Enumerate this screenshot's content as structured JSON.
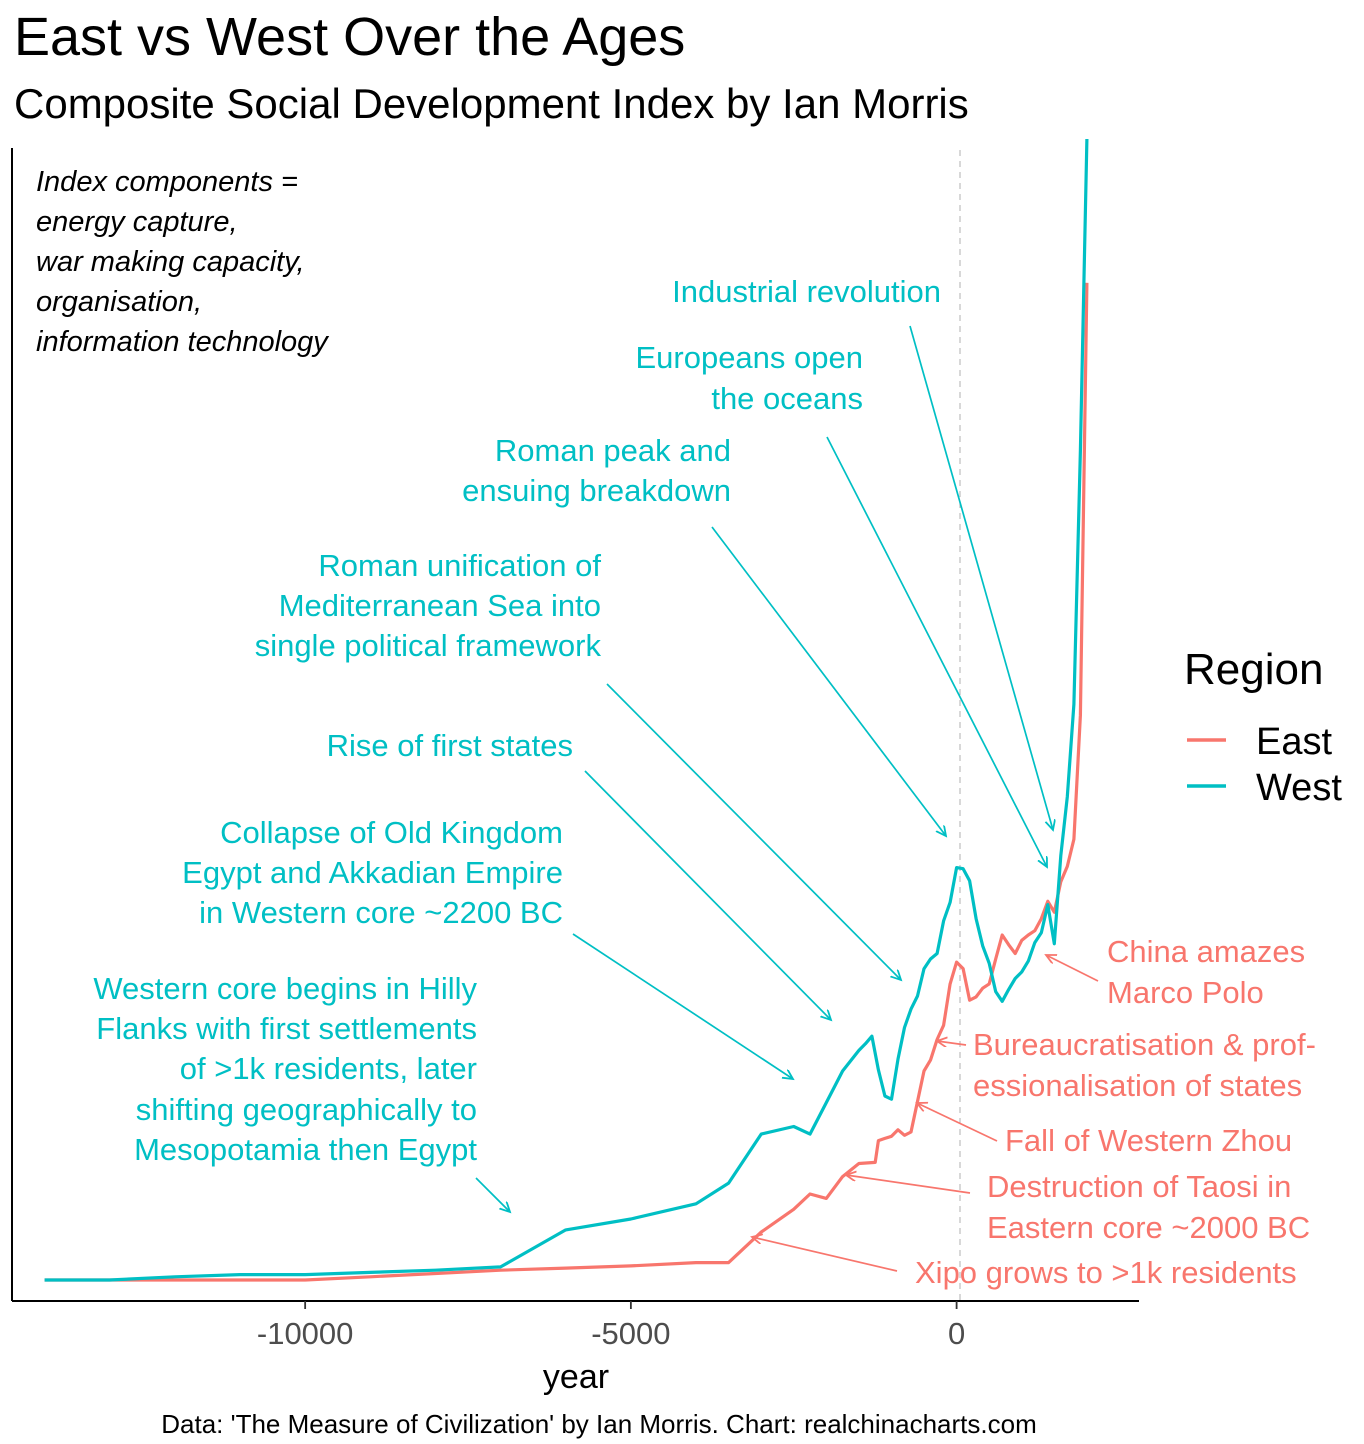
{
  "chart_data": {
    "type": "line",
    "title": "East vs West Over the Ages",
    "subtitle": "Composite Social Development Index by Ian Morris",
    "xlabel": "year",
    "ylabel": "",
    "caption": "Data: 'The Measure of Civilization' by Ian Morris. Chart: realchinacharts.com",
    "note": [
      "Index components =",
      "energy capture,",
      "war making capacity,",
      "organisation,",
      "information technology"
    ],
    "xlim": [
      -14500,
      2800
    ],
    "ylim": [
      -20,
      1080
    ],
    "xticks": [
      -10000,
      -5000,
      0
    ],
    "xtick_labels": [
      "-10000",
      "-5000",
      "0"
    ],
    "legend": {
      "title": "Region",
      "position": "right",
      "entries": [
        "East",
        "West"
      ]
    },
    "colors": {
      "East": "#F8766D",
      "West": "#00BFC4"
    },
    "series": [
      {
        "name": "West",
        "x": [
          -14000,
          -13000,
          -12000,
          -11000,
          -10000,
          -9000,
          -8000,
          -7000,
          -6000,
          -5000,
          -4000,
          -3500,
          -3000,
          -2500,
          -2250,
          -2000,
          -1750,
          -1500,
          -1400,
          -1300,
          -1200,
          -1100,
          -1000,
          -900,
          -800,
          -700,
          -600,
          -500,
          -400,
          -300,
          -200,
          -100,
          0,
          100,
          200,
          300,
          400,
          500,
          600,
          700,
          800,
          900,
          1000,
          1100,
          1200,
          1300,
          1400,
          1500,
          1600,
          1700,
          1800,
          1900,
          2000
        ],
        "y": [
          0.0,
          0.0,
          3.1,
          5.2,
          5.2,
          7.3,
          9.4,
          12.5,
          47.8,
          58.2,
          72.7,
          92.5,
          139.2,
          146.5,
          139.2,
          169.3,
          199.4,
          219.1,
          225.4,
          232.6,
          200.5,
          175.6,
          172.5,
          210.8,
          240.9,
          258.5,
          271.0,
          296.9,
          306.3,
          311.5,
          342.6,
          360.3,
          393.5,
          392.4,
          381.0,
          344.7,
          318.8,
          302.2,
          275.2,
          265.9,
          277.3,
          287.7,
          293.9,
          304.3,
          321.9,
          331.3,
          358.2,
          320.8,
          404.9,
          461.0,
          549.3,
          791.5,
          1088.6
        ]
      },
      {
        "name": "East",
        "x": [
          -14000,
          -12000,
          -10000,
          -9000,
          -8000,
          -7000,
          -6000,
          -5000,
          -4000,
          -3500,
          -3000,
          -2500,
          -2250,
          -2000,
          -1750,
          -1500,
          -1250,
          -1200,
          -1100,
          -1000,
          -900,
          -800,
          -700,
          -600,
          -500,
          -400,
          -300,
          -200,
          -100,
          0,
          100,
          200,
          300,
          400,
          500,
          600,
          700,
          800,
          900,
          1000,
          1100,
          1200,
          1300,
          1400,
          1500,
          1600,
          1700,
          1800,
          1900,
          2000
        ],
        "y": [
          0.0,
          0.0,
          0.0,
          3.1,
          6.2,
          9.4,
          11.4,
          13.5,
          16.6,
          16.6,
          45.7,
          67.5,
          82.1,
          77.9,
          98.7,
          111.2,
          112.2,
          133.0,
          135.1,
          137.1,
          143.3,
          138.1,
          141.2,
          170.3,
          199.4,
          209.8,
          229.5,
          243.0,
          282.5,
          303.3,
          297.1,
          267.0,
          270.1,
          278.4,
          282.5,
          306.3,
          329.2,
          319.8,
          311.5,
          324.0,
          329.2,
          333.3,
          344.7,
          361.3,
          350.9,
          380.0,
          394.6,
          420.5,
          538.9,
          951.4
        ]
      }
    ],
    "annotations": [
      {
        "region": "West",
        "lines": [
          "Industrial revolution"
        ]
      },
      {
        "region": "West",
        "lines": [
          "Europeans open",
          "the oceans"
        ]
      },
      {
        "region": "West",
        "lines": [
          "Roman peak and",
          "ensuing breakdown"
        ]
      },
      {
        "region": "West",
        "lines": [
          "Roman unification of",
          "Mediterranean Sea into",
          "single political framework"
        ]
      },
      {
        "region": "West",
        "lines": [
          "Rise of first states"
        ]
      },
      {
        "region": "West",
        "lines": [
          "Collapse of Old Kingdom",
          "Egypt and Akkadian Empire",
          "in Western core ~2200 BC"
        ]
      },
      {
        "region": "West",
        "lines": [
          "Western core begins in Hilly",
          "Flanks with first settlements",
          "of >1k residents, later",
          "shifting geographically to",
          "Mesopotamia then Egypt"
        ]
      },
      {
        "region": "East",
        "lines": [
          "China amazes",
          "Marco Polo"
        ]
      },
      {
        "region": "East",
        "lines": [
          "Bureaucratisation & prof-",
          "essionalisation of states"
        ]
      },
      {
        "region": "East",
        "lines": [
          "Fall of Western Zhou"
        ]
      },
      {
        "region": "East",
        "lines": [
          "Destruction of Taosi in",
          "Eastern core ~2000 BC"
        ]
      },
      {
        "region": "East",
        "lines": [
          "Xipo grows to >1k residents"
        ]
      }
    ]
  }
}
